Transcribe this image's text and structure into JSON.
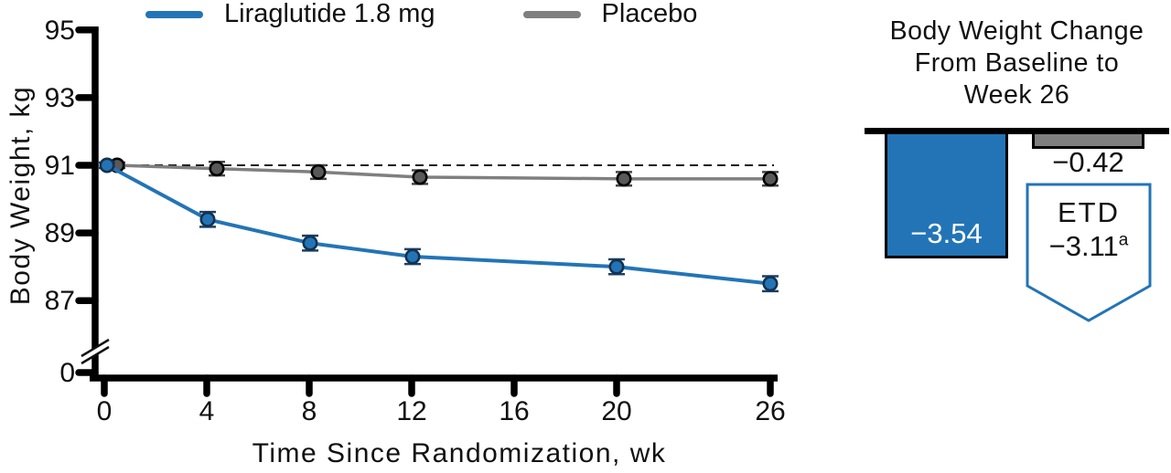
{
  "chart_data": [
    {
      "type": "line",
      "title": "",
      "xlabel": "Time Since Randomization, wk",
      "ylabel": "Body Weight, kg",
      "x": [
        0,
        4,
        8,
        12,
        20,
        26
      ],
      "x_ticks": [
        0,
        4,
        8,
        12,
        16,
        20,
        26
      ],
      "y_ticks": [
        95,
        93,
        91,
        89,
        87
      ],
      "y_axis_break": true,
      "y_zero_label": "0",
      "xlim": [
        0,
        26
      ],
      "ylim": [
        87,
        95
      ],
      "grid": false,
      "legend_position": "top",
      "reference_line_y": 91,
      "series": [
        {
          "name": "Liraglutide 1.8 mg",
          "color": "#2374B6",
          "values": [
            91.0,
            89.4,
            88.7,
            88.3,
            88.0,
            87.5
          ],
          "error_bars": [
            0.08,
            0.22,
            0.22,
            0.22,
            0.22,
            0.22
          ]
        },
        {
          "name": "Placebo",
          "color": "#7F7F7F",
          "values": [
            91.0,
            90.9,
            90.8,
            90.65,
            90.6,
            90.6
          ],
          "error_bars": [
            0.08,
            0.2,
            0.2,
            0.2,
            0.2,
            0.2
          ]
        }
      ]
    },
    {
      "type": "bar",
      "title": "Body Weight Change From Baseline to Week 26",
      "title_lines": [
        "Body Weight Change",
        "From Baseline to",
        "Week 26"
      ],
      "categories": [
        "Liraglutide 1.8 mg",
        "Placebo"
      ],
      "values": [
        -3.54,
        -0.42
      ],
      "bar_labels": [
        "−3.54",
        "−0.42"
      ],
      "bar_colors": [
        "#2374B6",
        "#7F7F7F"
      ],
      "baseline_color": "#000000",
      "annotation": {
        "label": "ETD",
        "value": "−3.11",
        "footnote_marker": "a"
      }
    }
  ]
}
